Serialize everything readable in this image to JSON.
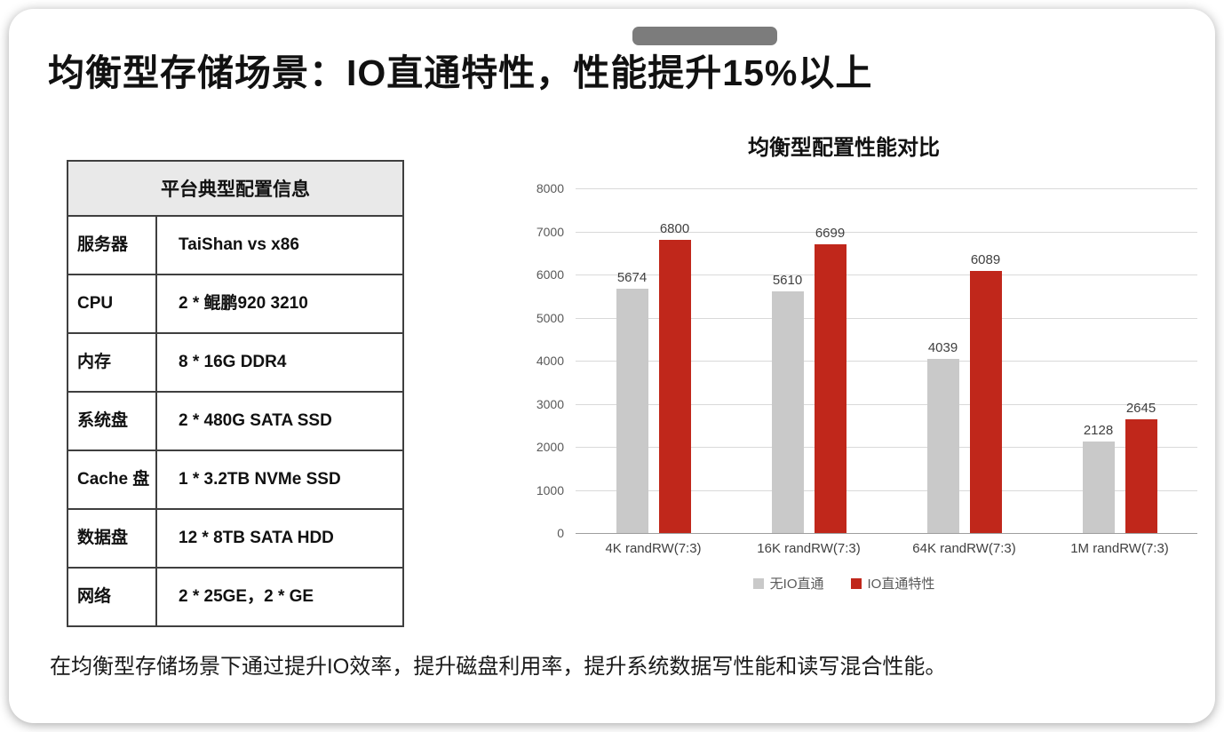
{
  "slide": {
    "title": "均衡型存储场景：IO直通特性，性能提升15%以上",
    "footnote": "在均衡型存储场景下通过提升IO效率，提升磁盘利用率，提升系统数据写性能和读写混合性能。"
  },
  "table": {
    "header": "平台典型配置信息",
    "rows": [
      {
        "label": "服务器",
        "value": "TaiShan vs x86"
      },
      {
        "label": "CPU",
        "value": "2 * 鲲鹏920 3210"
      },
      {
        "label": "内存",
        "value": "8 * 16G DDR4"
      },
      {
        "label": "系统盘",
        "value": "2 * 480G SATA SSD"
      },
      {
        "label": "Cache 盘",
        "value": "1 * 3.2TB NVMe SSD"
      },
      {
        "label": "数据盘",
        "value": "12 * 8TB SATA HDD"
      },
      {
        "label": "网络",
        "value": "2 * 25GE，2 * GE"
      }
    ]
  },
  "chart_data": {
    "type": "bar",
    "title": "均衡型配置性能对比",
    "categories": [
      "4K randRW(7:3)",
      "16K randRW(7:3)",
      "64K randRW(7:3)",
      "1M randRW(7:3)"
    ],
    "series": [
      {
        "name": "无IO直通",
        "color": "#c9c9c9",
        "values": [
          5674,
          5610,
          4039,
          2128
        ]
      },
      {
        "name": "IO直通特性",
        "color": "#c0271b",
        "values": [
          6800,
          6699,
          6089,
          2645
        ]
      }
    ],
    "ylim": [
      0,
      8000
    ],
    "ytick_step": 1000,
    "grid": true,
    "legend_position": "bottom"
  }
}
